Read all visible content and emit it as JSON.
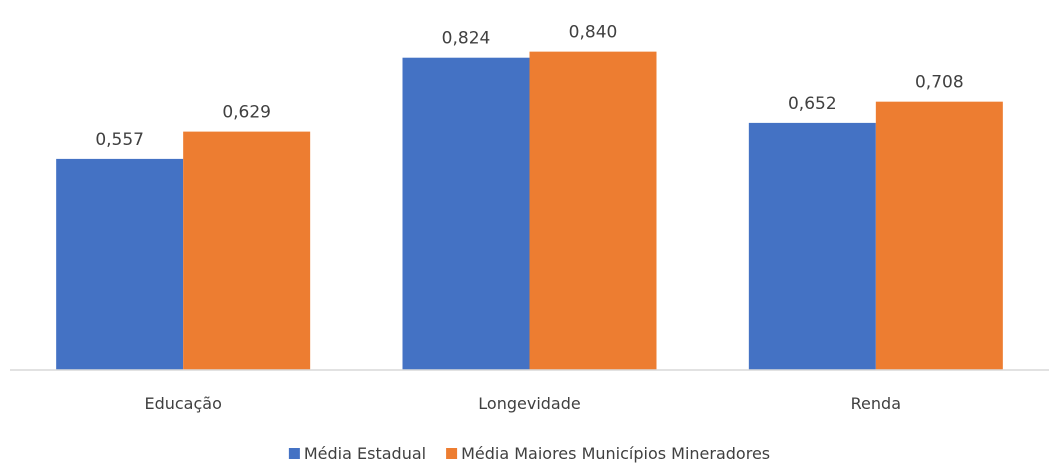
{
  "chart_data": {
    "type": "bar",
    "categories": [
      "Educação",
      "Longevidade",
      "Renda"
    ],
    "series": [
      {
        "name": "Média Estadual",
        "values": [
          0.557,
          0.824,
          0.652
        ],
        "labels": [
          "0,557",
          "0,824",
          "0,652"
        ],
        "color": "#4472C4"
      },
      {
        "name": "Média Maiores Municípios Mineradores",
        "values": [
          0.629,
          0.84,
          0.708
        ],
        "labels": [
          "0,629",
          "0,840",
          "0,708"
        ],
        "color": "#ED7D31"
      }
    ],
    "title": "",
    "xlabel": "",
    "ylabel": "",
    "ylim": [
      0,
      0.9
    ],
    "grid": false,
    "legend_position": "bottom"
  }
}
